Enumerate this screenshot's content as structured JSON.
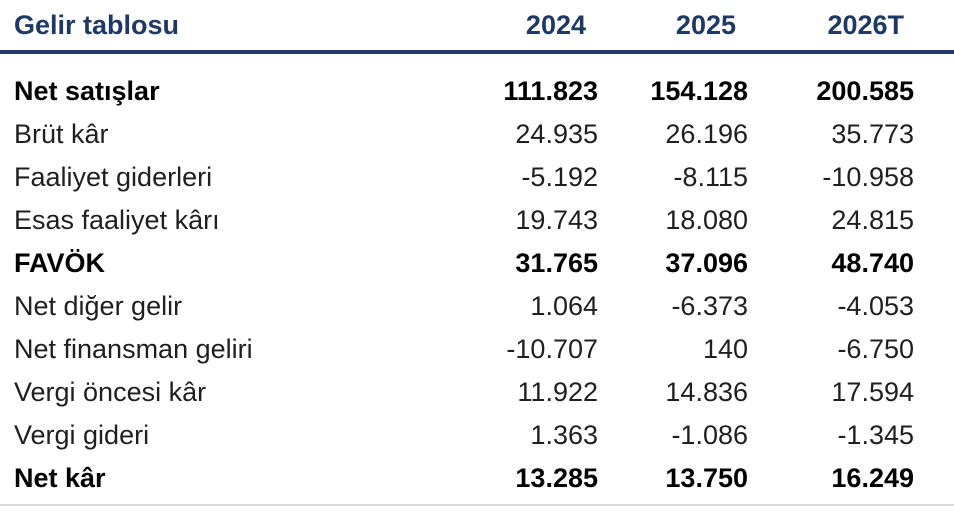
{
  "chart_data": {
    "type": "table",
    "title": "Gelir tablosu",
    "columns": [
      "2024",
      "2025",
      "2026T"
    ],
    "accent_color": "#1F3864",
    "rows": [
      {
        "label": "Net satışlar",
        "values": [
          "111.823",
          "154.128",
          "200.585"
        ],
        "emphasis": true
      },
      {
        "label": "Brüt kâr",
        "values": [
          "24.935",
          "26.196",
          "35.773"
        ],
        "emphasis": false
      },
      {
        "label": "Faaliyet giderleri",
        "values": [
          "-5.192",
          "-8.115",
          "-10.958"
        ],
        "emphasis": false
      },
      {
        "label": "Esas faaliyet kârı",
        "values": [
          "19.743",
          "18.080",
          "24.815"
        ],
        "emphasis": false
      },
      {
        "label": "FAVÖK",
        "values": [
          "31.765",
          "37.096",
          "48.740"
        ],
        "emphasis": true
      },
      {
        "label": "Net diğer gelir",
        "values": [
          "1.064",
          "-6.373",
          "-4.053"
        ],
        "emphasis": false
      },
      {
        "label": "Net finansman geliri",
        "values": [
          "-10.707",
          "140",
          "-6.750"
        ],
        "emphasis": false
      },
      {
        "label": "Vergi öncesi kâr",
        "values": [
          "11.922",
          "14.836",
          "17.594"
        ],
        "emphasis": false
      },
      {
        "label": "Vergi gideri",
        "values": [
          "1.363",
          "-1.086",
          "-1.345"
        ],
        "emphasis": false
      },
      {
        "label": "Net kâr",
        "values": [
          "13.285",
          "13.750",
          "16.249"
        ],
        "emphasis": true
      }
    ]
  }
}
